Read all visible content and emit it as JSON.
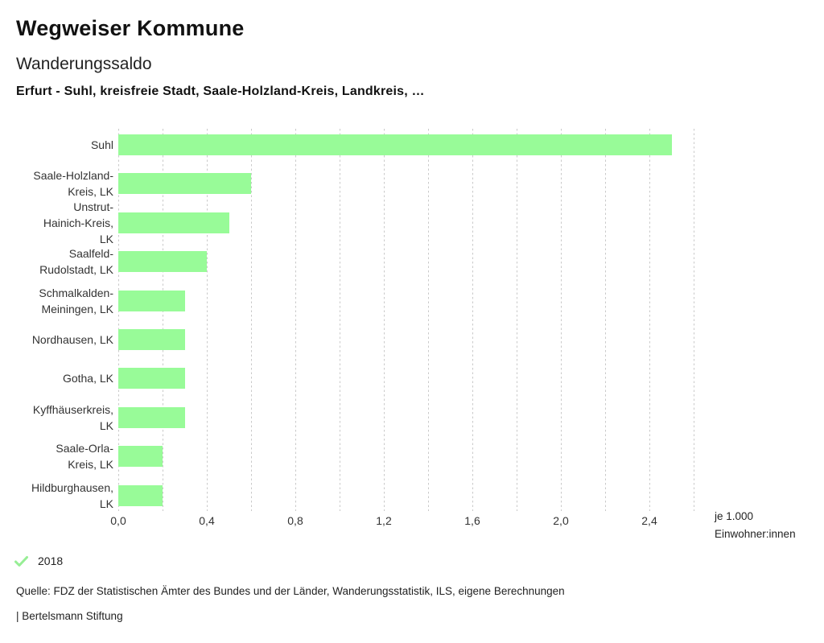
{
  "header": {
    "title": "Wegweiser Kommune",
    "subtitle": "Wanderungssaldo",
    "selection": "Erfurt - Suhl, kreisfreie Stadt, Saale-Holzland-Kreis, Landkreis, …"
  },
  "chart_data": {
    "type": "bar",
    "orientation": "horizontal",
    "title": "Wanderungssaldo",
    "categories": [
      "Suhl",
      "Saale-Holzland-Kreis, LK",
      "Unstrut-Hainich-Kreis, LK",
      "Saalfeld-Rudolstadt, LK",
      "Schmalkalden-Meiningen, LK",
      "Nordhausen, LK",
      "Gotha, LK",
      "Kyffhäuserkreis, LK",
      "Saale-Orla-Kreis, LK",
      "Hildburghausen, LK"
    ],
    "category_lines": [
      [
        "Suhl"
      ],
      [
        "Saale-Holzland-",
        "Kreis, LK"
      ],
      [
        "Unstrut-",
        "Hainich-Kreis,",
        "LK"
      ],
      [
        "Saalfeld-",
        "Rudolstadt, LK"
      ],
      [
        "Schmalkalden-",
        "Meiningen, LK"
      ],
      [
        "Nordhausen, LK"
      ],
      [
        "Gotha, LK"
      ],
      [
        "Kyffhäuserkreis,",
        "LK"
      ],
      [
        "Saale-Orla-",
        "Kreis, LK"
      ],
      [
        "Hildburghausen,",
        "LK"
      ]
    ],
    "series": [
      {
        "name": "2018",
        "values": [
          2.5,
          0.6,
          0.5,
          0.4,
          0.3,
          0.3,
          0.3,
          0.3,
          0.2,
          0.2
        ]
      }
    ],
    "xlabel": "je 1.000 Einwohner:innen",
    "xlabel_lines": [
      "je 1.000",
      "Einwohner:innen"
    ],
    "xlim": [
      0,
      2.6
    ],
    "xticks": [
      {
        "value": 0.0,
        "label": "0,0"
      },
      {
        "value": 0.4,
        "label": "0,4"
      },
      {
        "value": 0.8,
        "label": "0,8"
      },
      {
        "value": 1.2,
        "label": "1,2"
      },
      {
        "value": 1.6,
        "label": "1,6"
      },
      {
        "value": 2.0,
        "label": "2,0"
      },
      {
        "value": 2.4,
        "label": "2,4"
      }
    ],
    "grid_interval": 0.2,
    "grid": "vertical-dashed",
    "legend_position": "bottom-left",
    "bar_color": "#98fb98",
    "grid_color": "#c9c9c9"
  },
  "legend": {
    "year": "2018",
    "check_color": "#97ee95"
  },
  "footer": {
    "source": "Quelle: FDZ der Statistischen Ämter des Bundes und der Länder, Wanderungsstatistik, ILS, eigene Berechnungen",
    "attribution": "| Bertelsmann Stiftung"
  }
}
